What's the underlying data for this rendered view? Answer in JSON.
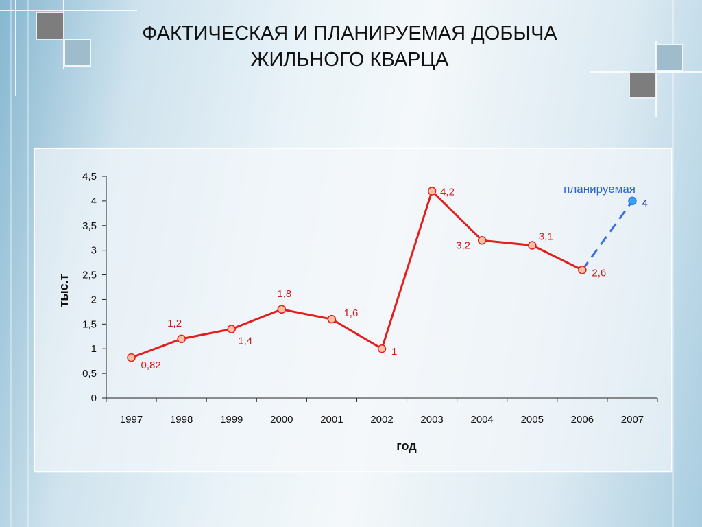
{
  "slide": {
    "title_line1": "ФАКТИЧЕСКАЯ И ПЛАНИРУЕМАЯ ДОБЫЧА",
    "title_line2": "ЖИЛЬНОГО КВАРЦА"
  },
  "colors": {
    "actual": "#e31e1e",
    "planned": "#3a6fe0",
    "point_fill_actual": "#f9c1a2",
    "point_fill_planned": "#2fa8f0"
  },
  "chart_data": {
    "type": "line",
    "categories": [
      "1997",
      "1998",
      "1999",
      "2000",
      "2001",
      "2002",
      "2003",
      "2004",
      "2005",
      "2006",
      "2007"
    ],
    "series": [
      {
        "style": "solid",
        "color": "#e31e1e",
        "values": [
          0.82,
          1.2,
          1.4,
          1.8,
          1.6,
          1.0,
          4.2,
          3.2,
          3.1,
          2.6,
          null
        ],
        "labels": [
          "0,82",
          "1,2",
          "1,4",
          "1,8",
          "1,6",
          "1",
          "4,2",
          "3,2",
          "3,1",
          "2,6",
          ""
        ]
      },
      {
        "name": "планируемая",
        "style": "dashed",
        "color": "#3a6fe0",
        "values": [
          null,
          null,
          null,
          null,
          null,
          null,
          null,
          null,
          null,
          2.6,
          4.0
        ],
        "labels": [
          "",
          "",
          "",
          "",
          "",
          "",
          "",
          "",
          "",
          "",
          "4"
        ]
      }
    ],
    "ylim": [
      0,
      4.5
    ],
    "yticks": [
      "0",
      "0,5",
      "1",
      "1,5",
      "2",
      "2,5",
      "3",
      "3,5",
      "4",
      "4,5"
    ],
    "xlabel": "год",
    "ylabel": "тыс.т",
    "grid": false
  }
}
